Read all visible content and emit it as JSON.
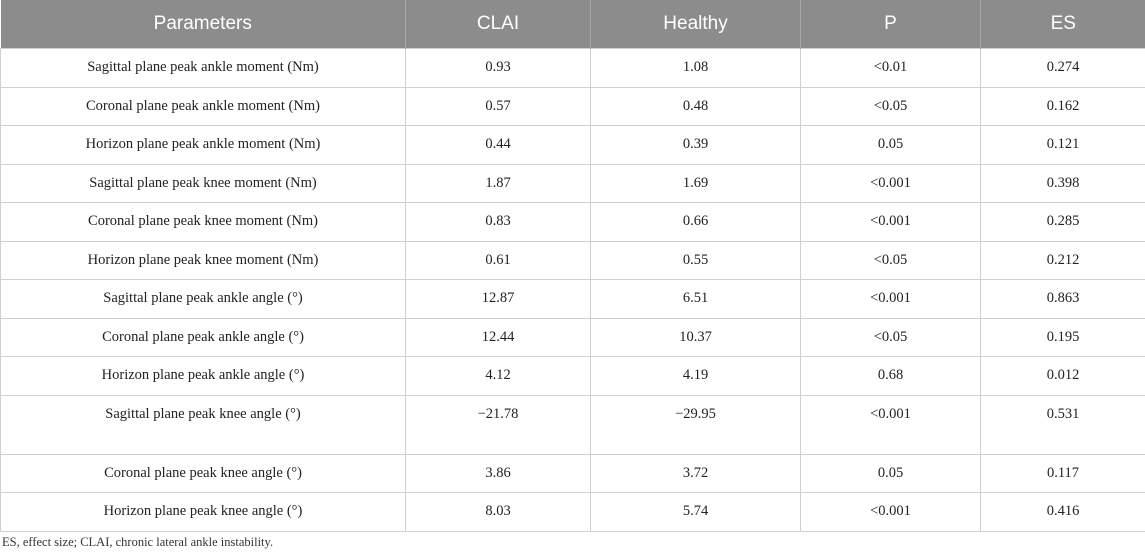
{
  "table": {
    "headers": [
      "Parameters",
      "CLAI",
      "Healthy",
      "P",
      "ES"
    ],
    "rows": [
      [
        "Sagittal plane peak ankle moment (Nm)",
        "0.93",
        "1.08",
        "<0.01",
        "0.274"
      ],
      [
        "Coronal plane peak ankle moment (Nm)",
        "0.57",
        "0.48",
        "<0.05",
        "0.162"
      ],
      [
        "Horizon plane peak ankle moment (Nm)",
        "0.44",
        "0.39",
        "0.05",
        "0.121"
      ],
      [
        "Sagittal plane peak knee moment (Nm)",
        "1.87",
        "1.69",
        "<0.001",
        "0.398"
      ],
      [
        "Coronal plane peak knee moment (Nm)",
        "0.83",
        "0.66",
        "<0.001",
        "0.285"
      ],
      [
        "Horizon plane peak knee moment (Nm)",
        "0.61",
        "0.55",
        "<0.05",
        "0.212"
      ],
      [
        "Sagittal plane peak ankle angle (°)",
        "12.87",
        "6.51",
        "<0.001",
        "0.863"
      ],
      [
        "Coronal plane peak ankle angle (°)",
        "12.44",
        "10.37",
        "<0.05",
        "0.195"
      ],
      [
        "Horizon plane peak ankle angle (°)",
        "4.12",
        "4.19",
        "0.68",
        "0.012"
      ],
      [
        "Sagittal plane peak knee angle (°)",
        "−21.78",
        "−29.95",
        "<0.001",
        "0.531"
      ],
      [
        "Coronal plane peak knee angle (°)",
        "3.86",
        "3.72",
        "0.05",
        "0.117"
      ],
      [
        "Horizon plane peak knee angle (°)",
        "8.03",
        "5.74",
        "<0.001",
        "0.416"
      ]
    ]
  },
  "footnote": "ES, effect size; CLAI, chronic lateral ankle instability."
}
